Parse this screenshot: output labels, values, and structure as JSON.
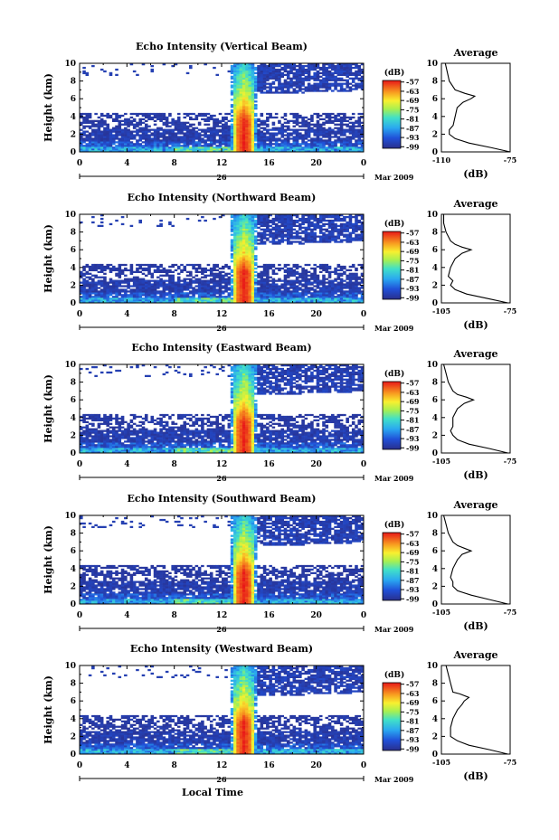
{
  "figure": {
    "x_axis_label": "Local Time",
    "date_day": "26",
    "date_month": "Mar 2009",
    "height_axis_label": "Height (km)",
    "average_title": "Average",
    "average_unit": "(dB)",
    "colorbar_unit": "(dB)"
  },
  "chart_data": [
    {
      "type": "heatmap",
      "title": "Echo Intensity (Vertical Beam)",
      "xlabel": "",
      "ylabel": "Height (km)",
      "xlim": [
        0,
        24
      ],
      "ylim": [
        0,
        10
      ],
      "x_ticks": [
        "0",
        "4",
        "8",
        "12",
        "16",
        "20",
        "0"
      ],
      "y_ticks": [
        "0",
        "2",
        "4",
        "6",
        "8",
        "10"
      ],
      "colorbar": {
        "label": "(dB)",
        "ticks": [
          "-57",
          "-63",
          "-69",
          "-75",
          "-81",
          "-87",
          "-93",
          "-99"
        ],
        "range": [
          -100,
          -56
        ]
      },
      "average": {
        "title": "Average",
        "xlabel": "(dB)",
        "xlim": [
          -110,
          -75
        ],
        "x_ticks": [
          "-110",
          "-75"
        ],
        "y_ticks": [
          "0",
          "2",
          "4",
          "6",
          "8",
          "10"
        ],
        "profile": [
          {
            "h": 0.0,
            "db": -75
          },
          {
            "h": 0.5,
            "db": -85
          },
          {
            "h": 1.0,
            "db": -96
          },
          {
            "h": 1.5,
            "db": -103
          },
          {
            "h": 2.0,
            "db": -106
          },
          {
            "h": 2.5,
            "db": -106
          },
          {
            "h": 3.0,
            "db": -104
          },
          {
            "h": 4.0,
            "db": -103
          },
          {
            "h": 5.0,
            "db": -102
          },
          {
            "h": 5.6,
            "db": -99
          },
          {
            "h": 6.0,
            "db": -95
          },
          {
            "h": 6.3,
            "db": -93
          },
          {
            "h": 6.6,
            "db": -98
          },
          {
            "h": 7.0,
            "db": -103
          },
          {
            "h": 8.0,
            "db": -106
          },
          {
            "h": 9.0,
            "db": -107
          },
          {
            "h": 10.0,
            "db": -108
          }
        ]
      }
    },
    {
      "type": "heatmap",
      "title": "Echo Intensity (Northward Beam)",
      "xlabel": "",
      "ylabel": "Height (km)",
      "xlim": [
        0,
        24
      ],
      "ylim": [
        0,
        10
      ],
      "x_ticks": [
        "0",
        "4",
        "8",
        "12",
        "16",
        "20",
        "0"
      ],
      "y_ticks": [
        "0",
        "2",
        "4",
        "6",
        "8",
        "10"
      ],
      "colorbar": {
        "label": "(dB)",
        "ticks": [
          "-57",
          "-63",
          "-69",
          "-75",
          "-81",
          "-87",
          "-93",
          "-99"
        ],
        "range": [
          -100,
          -56
        ]
      },
      "average": {
        "title": "Average",
        "xlabel": "(dB)",
        "xlim": [
          -105,
          -75
        ],
        "x_ticks": [
          "-105",
          "-75"
        ],
        "y_ticks": [
          "0",
          "2",
          "4",
          "6",
          "8",
          "10"
        ],
        "profile": [
          {
            "h": 0.0,
            "db": -76
          },
          {
            "h": 0.5,
            "db": -85
          },
          {
            "h": 1.0,
            "db": -94
          },
          {
            "h": 1.5,
            "db": -99
          },
          {
            "h": 2.0,
            "db": -101
          },
          {
            "h": 2.5,
            "db": -100
          },
          {
            "h": 3.0,
            "db": -102
          },
          {
            "h": 4.0,
            "db": -101
          },
          {
            "h": 5.0,
            "db": -99
          },
          {
            "h": 5.6,
            "db": -96
          },
          {
            "h": 6.0,
            "db": -92
          },
          {
            "h": 6.3,
            "db": -96
          },
          {
            "h": 6.6,
            "db": -99
          },
          {
            "h": 7.0,
            "db": -101
          },
          {
            "h": 8.0,
            "db": -103
          },
          {
            "h": 9.0,
            "db": -104
          },
          {
            "h": 10.0,
            "db": -104
          }
        ]
      }
    },
    {
      "type": "heatmap",
      "title": "Echo Intensity (Eastward Beam)",
      "xlabel": "",
      "ylabel": "Height (km)",
      "xlim": [
        0,
        24
      ],
      "ylim": [
        0,
        10
      ],
      "x_ticks": [
        "0",
        "4",
        "8",
        "12",
        "16",
        "20",
        "0"
      ],
      "y_ticks": [
        "0",
        "2",
        "4",
        "6",
        "8",
        "10"
      ],
      "colorbar": {
        "label": "(dB)",
        "ticks": [
          "-57",
          "-63",
          "-69",
          "-75",
          "-81",
          "-87",
          "-93",
          "-99"
        ],
        "range": [
          -100,
          -56
        ]
      },
      "average": {
        "title": "Average",
        "xlabel": "(dB)",
        "xlim": [
          -105,
          -75
        ],
        "x_ticks": [
          "-105",
          "-75"
        ],
        "y_ticks": [
          "0",
          "2",
          "4",
          "6",
          "8",
          "10"
        ],
        "profile": [
          {
            "h": 0.0,
            "db": -76
          },
          {
            "h": 0.5,
            "db": -84
          },
          {
            "h": 1.0,
            "db": -93
          },
          {
            "h": 1.5,
            "db": -98
          },
          {
            "h": 2.0,
            "db": -100
          },
          {
            "h": 2.5,
            "db": -101
          },
          {
            "h": 3.0,
            "db": -100
          },
          {
            "h": 4.0,
            "db": -100
          },
          {
            "h": 5.0,
            "db": -98
          },
          {
            "h": 5.6,
            "db": -95
          },
          {
            "h": 6.0,
            "db": -91
          },
          {
            "h": 6.3,
            "db": -94
          },
          {
            "h": 6.6,
            "db": -98
          },
          {
            "h": 7.0,
            "db": -100
          },
          {
            "h": 8.0,
            "db": -102
          },
          {
            "h": 9.0,
            "db": -103
          },
          {
            "h": 10.0,
            "db": -104
          }
        ]
      }
    },
    {
      "type": "heatmap",
      "title": "Echo Intensity (Southward Beam)",
      "xlabel": "",
      "ylabel": "Height (km)",
      "xlim": [
        0,
        24
      ],
      "ylim": [
        0,
        10
      ],
      "x_ticks": [
        "0",
        "4",
        "8",
        "12",
        "16",
        "20",
        "0"
      ],
      "y_ticks": [
        "0",
        "2",
        "4",
        "6",
        "8",
        "10"
      ],
      "colorbar": {
        "label": "(dB)",
        "ticks": [
          "-57",
          "-63",
          "-69",
          "-75",
          "-81",
          "-87",
          "-93",
          "-99"
        ],
        "range": [
          -100,
          -56
        ]
      },
      "average": {
        "title": "Average",
        "xlabel": "(dB)",
        "xlim": [
          -105,
          -75
        ],
        "x_ticks": [
          "-105",
          "-75"
        ],
        "y_ticks": [
          "0",
          "2",
          "4",
          "6",
          "8",
          "10"
        ],
        "profile": [
          {
            "h": 0.0,
            "db": -76
          },
          {
            "h": 0.5,
            "db": -84
          },
          {
            "h": 1.0,
            "db": -92
          },
          {
            "h": 1.5,
            "db": -98
          },
          {
            "h": 2.0,
            "db": -100
          },
          {
            "h": 2.5,
            "db": -100
          },
          {
            "h": 3.0,
            "db": -101
          },
          {
            "h": 4.0,
            "db": -100
          },
          {
            "h": 5.0,
            "db": -98
          },
          {
            "h": 5.6,
            "db": -96
          },
          {
            "h": 6.0,
            "db": -92
          },
          {
            "h": 6.3,
            "db": -95
          },
          {
            "h": 6.6,
            "db": -98
          },
          {
            "h": 7.0,
            "db": -100
          },
          {
            "h": 8.0,
            "db": -102
          },
          {
            "h": 9.0,
            "db": -103
          },
          {
            "h": 10.0,
            "db": -104
          }
        ]
      }
    },
    {
      "type": "heatmap",
      "title": "Echo Intensity (Westward Beam)",
      "xlabel": "Local Time",
      "ylabel": "Height (km)",
      "xlim": [
        0,
        24
      ],
      "ylim": [
        0,
        10
      ],
      "x_ticks": [
        "0",
        "4",
        "8",
        "12",
        "16",
        "20",
        "0"
      ],
      "y_ticks": [
        "0",
        "2",
        "4",
        "6",
        "8",
        "10"
      ],
      "colorbar": {
        "label": "(dB)",
        "ticks": [
          "-57",
          "-63",
          "-69",
          "-75",
          "-81",
          "-87",
          "-93",
          "-99"
        ],
        "range": [
          -100,
          -56
        ]
      },
      "average": {
        "title": "Average",
        "xlabel": "(dB)",
        "xlim": [
          -105,
          -75
        ],
        "x_ticks": [
          "-105",
          "-75"
        ],
        "y_ticks": [
          "0",
          "2",
          "4",
          "6",
          "8",
          "10"
        ],
        "profile": [
          {
            "h": 0.0,
            "db": -76
          },
          {
            "h": 0.5,
            "db": -84
          },
          {
            "h": 1.0,
            "db": -93
          },
          {
            "h": 1.5,
            "db": -98
          },
          {
            "h": 2.0,
            "db": -101
          },
          {
            "h": 2.5,
            "db": -101
          },
          {
            "h": 3.0,
            "db": -101
          },
          {
            "h": 4.0,
            "db": -100
          },
          {
            "h": 5.0,
            "db": -98
          },
          {
            "h": 5.6,
            "db": -96
          },
          {
            "h": 6.0,
            "db": -95
          },
          {
            "h": 6.4,
            "db": -93
          },
          {
            "h": 6.8,
            "db": -97
          },
          {
            "h": 7.0,
            "db": -100
          },
          {
            "h": 8.0,
            "db": -101
          },
          {
            "h": 9.0,
            "db": -102
          },
          {
            "h": 10.0,
            "db": -103
          }
        ]
      }
    }
  ]
}
